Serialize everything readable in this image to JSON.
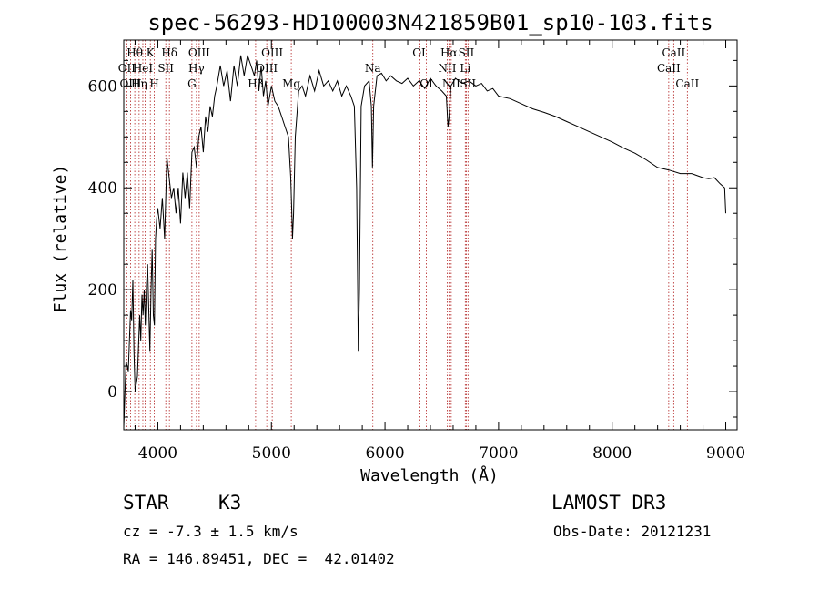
{
  "chart_data": {
    "type": "line",
    "title": "spec-56293-HD100003N421859B01_sp10-103.fits",
    "xlabel": "Wavelength (Å)",
    "ylabel": "Flux (relative)",
    "xlim": [
      3700,
      9100
    ],
    "ylim": [
      -75,
      690
    ],
    "xticks": [
      4000,
      5000,
      6000,
      7000,
      8000,
      9000
    ],
    "yticks": [
      0,
      200,
      400,
      600
    ],
    "xtick_labels": [
      "4000",
      "5000",
      "6000",
      "7000",
      "8000",
      "9000"
    ],
    "ytick_labels": [
      "0",
      "200",
      "400",
      "600"
    ],
    "series": [
      {
        "name": "flux",
        "points": [
          [
            3700,
            -70
          ],
          [
            3720,
            60
          ],
          [
            3740,
            40
          ],
          [
            3760,
            160
          ],
          [
            3770,
            140
          ],
          [
            3780,
            220
          ],
          [
            3790,
            80
          ],
          [
            3800,
            0
          ],
          [
            3820,
            30
          ],
          [
            3840,
            150
          ],
          [
            3850,
            100
          ],
          [
            3860,
            190
          ],
          [
            3870,
            150
          ],
          [
            3880,
            200
          ],
          [
            3890,
            130
          ],
          [
            3900,
            210
          ],
          [
            3910,
            250
          ],
          [
            3920,
            160
          ],
          [
            3930,
            80
          ],
          [
            3940,
            200
          ],
          [
            3950,
            280
          ],
          [
            3960,
            150
          ],
          [
            3970,
            130
          ],
          [
            3980,
            300
          ],
          [
            3990,
            340
          ],
          [
            4000,
            360
          ],
          [
            4020,
            320
          ],
          [
            4040,
            380
          ],
          [
            4060,
            300
          ],
          [
            4080,
            460
          ],
          [
            4100,
            420
          ],
          [
            4120,
            380
          ],
          [
            4140,
            400
          ],
          [
            4160,
            350
          ],
          [
            4180,
            400
          ],
          [
            4200,
            330
          ],
          [
            4220,
            430
          ],
          [
            4240,
            380
          ],
          [
            4260,
            430
          ],
          [
            4280,
            360
          ],
          [
            4300,
            470
          ],
          [
            4320,
            480
          ],
          [
            4340,
            440
          ],
          [
            4360,
            500
          ],
          [
            4380,
            520
          ],
          [
            4400,
            470
          ],
          [
            4420,
            540
          ],
          [
            4440,
            510
          ],
          [
            4460,
            560
          ],
          [
            4480,
            540
          ],
          [
            4500,
            580
          ],
          [
            4520,
            600
          ],
          [
            4550,
            640
          ],
          [
            4580,
            600
          ],
          [
            4610,
            630
          ],
          [
            4640,
            570
          ],
          [
            4670,
            640
          ],
          [
            4700,
            600
          ],
          [
            4730,
            660
          ],
          [
            4760,
            620
          ],
          [
            4790,
            660
          ],
          [
            4820,
            640
          ],
          [
            4850,
            620
          ],
          [
            4870,
            650
          ],
          [
            4890,
            590
          ],
          [
            4910,
            640
          ],
          [
            4930,
            580
          ],
          [
            4950,
            610
          ],
          [
            4970,
            560
          ],
          [
            5000,
            600
          ],
          [
            5030,
            570
          ],
          [
            5060,
            560
          ],
          [
            5090,
            540
          ],
          [
            5120,
            520
          ],
          [
            5150,
            500
          ],
          [
            5170,
            420
          ],
          [
            5180,
            350
          ],
          [
            5185,
            300
          ],
          [
            5195,
            350
          ],
          [
            5210,
            500
          ],
          [
            5240,
            590
          ],
          [
            5270,
            600
          ],
          [
            5300,
            580
          ],
          [
            5340,
            620
          ],
          [
            5380,
            590
          ],
          [
            5420,
            630
          ],
          [
            5460,
            600
          ],
          [
            5500,
            610
          ],
          [
            5540,
            590
          ],
          [
            5580,
            610
          ],
          [
            5620,
            580
          ],
          [
            5660,
            600
          ],
          [
            5700,
            580
          ],
          [
            5730,
            560
          ],
          [
            5750,
            400
          ],
          [
            5760,
            200
          ],
          [
            5765,
            80
          ],
          [
            5775,
            200
          ],
          [
            5790,
            560
          ],
          [
            5820,
            600
          ],
          [
            5860,
            610
          ],
          [
            5880,
            560
          ],
          [
            5890,
            440
          ],
          [
            5900,
            560
          ],
          [
            5930,
            620
          ],
          [
            5970,
            625
          ],
          [
            6010,
            610
          ],
          [
            6050,
            620
          ],
          [
            6100,
            610
          ],
          [
            6150,
            605
          ],
          [
            6200,
            615
          ],
          [
            6250,
            600
          ],
          [
            6300,
            610
          ],
          [
            6350,
            595
          ],
          [
            6400,
            615
          ],
          [
            6450,
            600
          ],
          [
            6500,
            590
          ],
          [
            6540,
            580
          ],
          [
            6555,
            520
          ],
          [
            6565,
            540
          ],
          [
            6580,
            600
          ],
          [
            6620,
            615
          ],
          [
            6680,
            605
          ],
          [
            6740,
            610
          ],
          [
            6800,
            600
          ],
          [
            6850,
            605
          ],
          [
            6900,
            590
          ],
          [
            6950,
            595
          ],
          [
            7000,
            580
          ],
          [
            7100,
            575
          ],
          [
            7200,
            565
          ],
          [
            7300,
            555
          ],
          [
            7400,
            548
          ],
          [
            7500,
            540
          ],
          [
            7600,
            530
          ],
          [
            7700,
            520
          ],
          [
            7800,
            510
          ],
          [
            7900,
            500
          ],
          [
            8000,
            490
          ],
          [
            8100,
            478
          ],
          [
            8200,
            468
          ],
          [
            8300,
            455
          ],
          [
            8400,
            440
          ],
          [
            8500,
            435
          ],
          [
            8600,
            428
          ],
          [
            8700,
            428
          ],
          [
            8800,
            420
          ],
          [
            8850,
            418
          ],
          [
            8900,
            420
          ],
          [
            8950,
            408
          ],
          [
            8990,
            400
          ],
          [
            9000,
            350
          ]
        ]
      }
    ],
    "line_markers": {
      "wavelengths": [
        3727,
        3760,
        3797,
        3835,
        3868,
        3889,
        3934,
        3969,
        4070,
        4102,
        4300,
        4340,
        4364,
        4861,
        4959,
        5007,
        5175,
        5893,
        6300,
        6364,
        6548,
        6563,
        6583,
        6707,
        6716,
        6731,
        8498,
        8542,
        8662
      ],
      "color": "#b22222"
    },
    "line_labels": [
      {
        "text": "Hθ",
        "w": 3797,
        "row": 1
      },
      {
        "text": "K",
        "w": 3934,
        "row": 1
      },
      {
        "text": "Hδ",
        "w": 4102,
        "row": 1
      },
      {
        "text": "OII",
        "w": 3727,
        "row": 2
      },
      {
        "text": "HeI",
        "w": 3868,
        "row": 2
      },
      {
        "text": "SII",
        "w": 4070,
        "row": 2
      },
      {
        "text": "OIII",
        "w": 3760,
        "row": 3
      },
      {
        "text": "Hη",
        "w": 3835,
        "row": 3
      },
      {
        "text": "H",
        "w": 3969,
        "row": 3
      },
      {
        "text": "OIII",
        "w": 4364,
        "row": 1
      },
      {
        "text": "Hγ",
        "w": 4340,
        "row": 2
      },
      {
        "text": "G",
        "w": 4300,
        "row": 3
      },
      {
        "text": "OIII",
        "w": 5007,
        "row": 1
      },
      {
        "text": "OIII",
        "w": 4959,
        "row": 2
      },
      {
        "text": "Hβ",
        "w": 4861,
        "row": 3
      },
      {
        "text": "Mg",
        "w": 5175,
        "row": 3
      },
      {
        "text": "Na",
        "w": 5893,
        "row": 2
      },
      {
        "text": "OI",
        "w": 6300,
        "row": 1
      },
      {
        "text": "OI",
        "w": 6364,
        "row": 3
      },
      {
        "text": "Hα",
        "w": 6563,
        "row": 1
      },
      {
        "text": "SII",
        "w": 6716,
        "row": 1
      },
      {
        "text": "NII",
        "w": 6548,
        "row": 2
      },
      {
        "text": "Li",
        "w": 6707,
        "row": 2
      },
      {
        "text": "NII",
        "w": 6583,
        "row": 3
      },
      {
        "text": "SII",
        "w": 6731,
        "row": 3
      },
      {
        "text": "CaII",
        "w": 8542,
        "row": 1
      },
      {
        "text": "CaII",
        "w": 8498,
        "row": 2
      },
      {
        "text": "CaII",
        "w": 8662,
        "row": 3
      }
    ]
  },
  "info": {
    "class_label": "STAR",
    "subclass": "K3",
    "survey": "LAMOST DR3",
    "cz": "cz = -7.3 ± 1.5 km/s",
    "obs_date": "Obs-Date: 20121231",
    "coords": "RA = 146.89451, DEC =  42.01402"
  }
}
